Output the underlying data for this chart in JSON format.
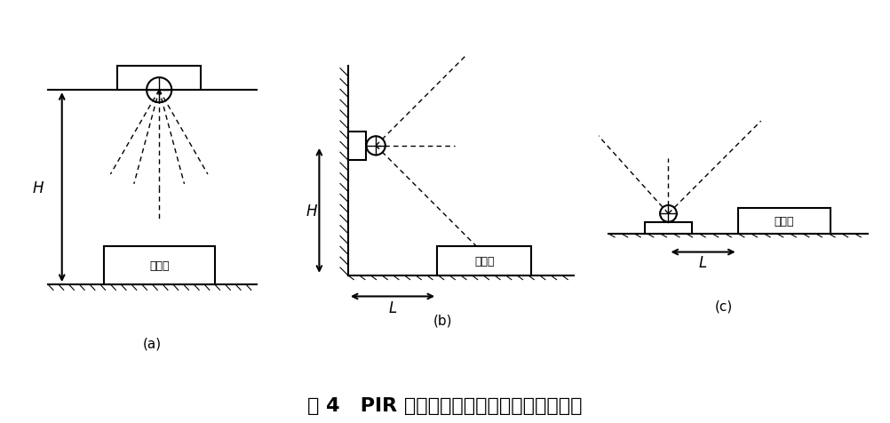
{
  "title": "图 4   PIR 探头与电暖器三种典型位置的试验",
  "title_fontsize": 16,
  "label_a": "(a)",
  "label_b": "(b)",
  "label_c": "(c)",
  "label_H": "H",
  "label_L": "L",
  "label_device": "电暖器",
  "bg_color": "#ffffff",
  "line_color": "#000000",
  "hatch_color": "#000000"
}
